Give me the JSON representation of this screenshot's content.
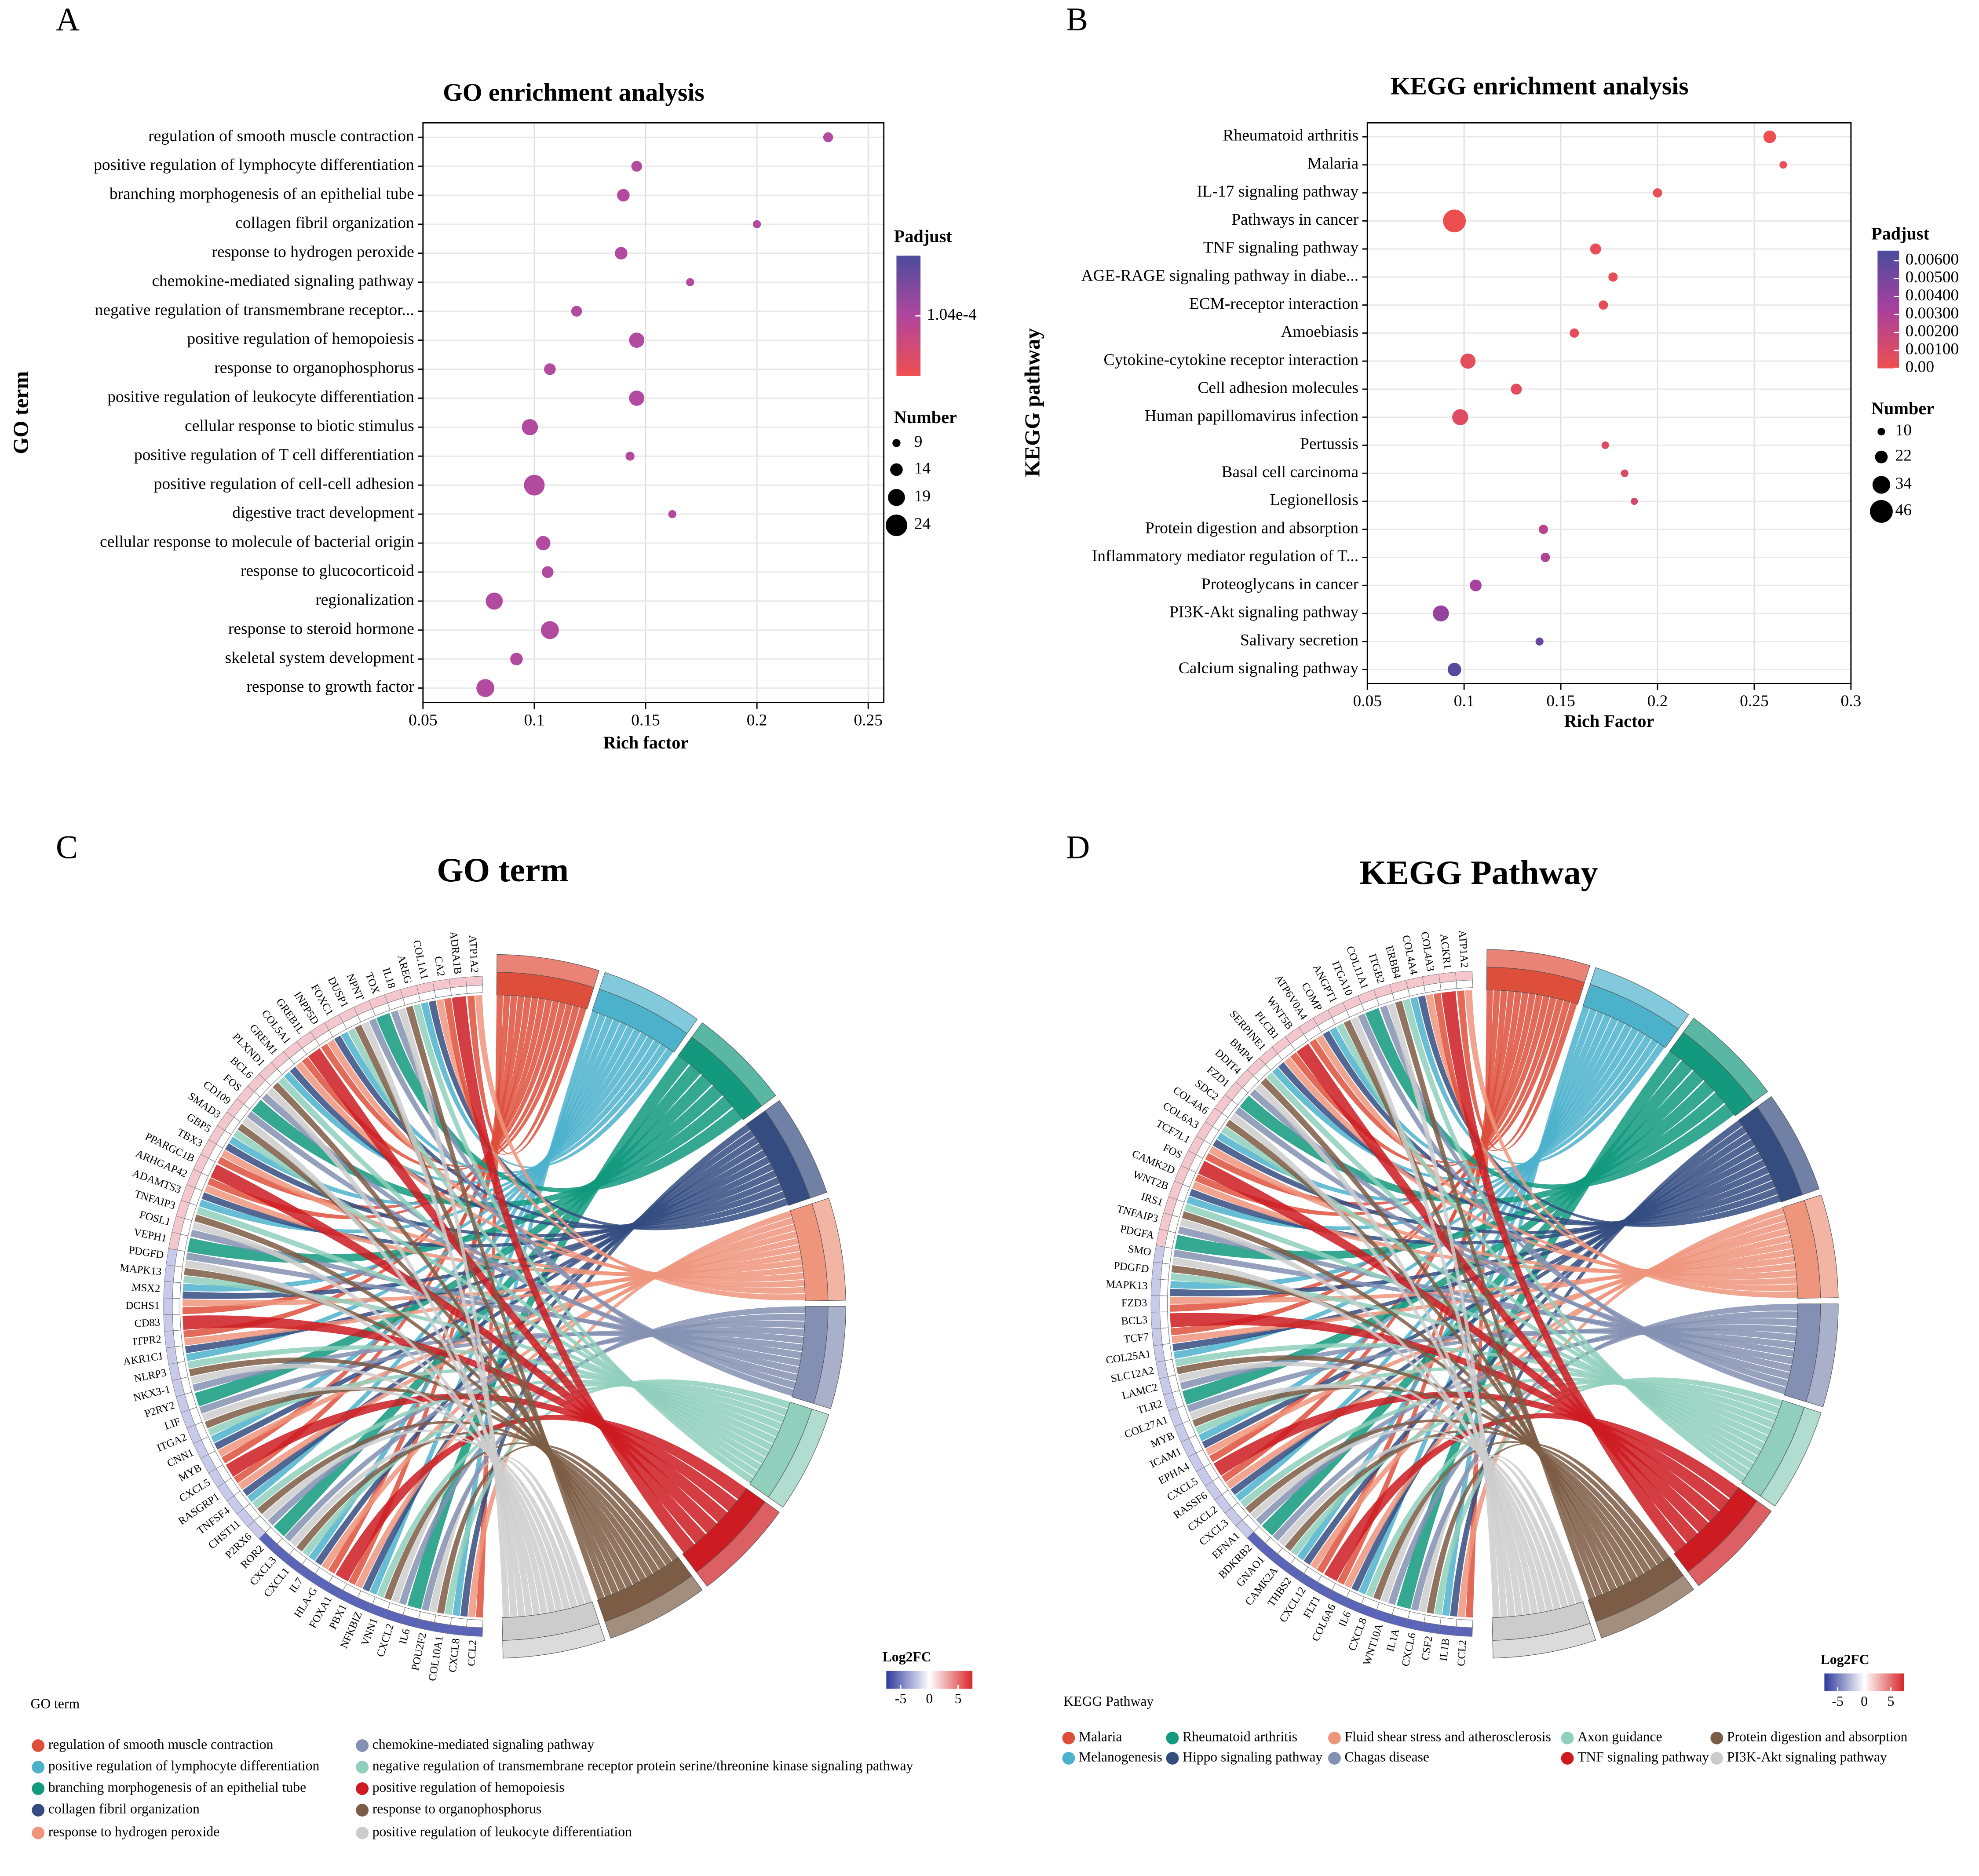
{
  "chart_data": [
    {
      "type": "bubble",
      "panel_label": "A",
      "title": "GO enrichment analysis",
      "x_label": "Rich factor",
      "y_label": "GO term",
      "categories": [
        "regulation of smooth muscle contraction",
        "positive regulation of lymphocyte differentiation",
        "branching morphogenesis of an epithelial tube",
        "collagen fibril organization",
        "response to hydrogen peroxide",
        "chemokine-mediated signaling pathway",
        "negative regulation of transmembrane receptor...",
        "positive regulation of hemopoiesis",
        "response to organophosphorus",
        "positive regulation of leukocyte differentiation",
        "cellular response to biotic stimulus",
        "positive regulation of T cell differentiation",
        "positive regulation of cell-cell adhesion",
        "digestive tract development",
        "cellular response to molecule of bacterial origin",
        "response to glucocorticoid",
        "regionalization",
        "response to steroid hormone",
        "skeletal system development",
        "response to growth factor"
      ],
      "x": [
        0.232,
        0.146,
        0.14,
        0.2,
        0.139,
        0.17,
        0.119,
        0.146,
        0.107,
        0.146,
        0.098,
        0.143,
        0.1,
        0.162,
        0.104,
        0.106,
        0.082,
        0.107,
        0.092,
        0.078
      ],
      "sizes": [
        11,
        12,
        14,
        9,
        14,
        9,
        12,
        17,
        13,
        17,
        18,
        10,
        23,
        9,
        16,
        13,
        19,
        20,
        14,
        20
      ],
      "color": "#b24a9f",
      "xlim": [
        0.05,
        0.257
      ],
      "xticks": [
        0.05,
        0.1,
        0.15,
        0.2,
        0.25
      ],
      "grid": true,
      "colorbar": {
        "title": "Padjust",
        "colors": [
          "#ef4f4f",
          "#b0469d",
          "#4b4c9e"
        ],
        "lim": [
          9.95e-05,
          0.0001085
        ],
        "ticks": [
          {
            "value": 0.000104,
            "label": "1.04e-4"
          }
        ]
      },
      "size_legend": {
        "title": "Number",
        "values": [
          9,
          14,
          19,
          24
        ]
      }
    },
    {
      "type": "bubble",
      "panel_label": "B",
      "title": "KEGG enrichment analysis",
      "x_label": "Rich Factor",
      "y_label": "KEGG pathway",
      "categories": [
        "Rheumatoid arthritis",
        "Malaria",
        "IL-17 signaling pathway",
        "Pathways in cancer",
        "TNF signaling pathway",
        "AGE-RAGE signaling pathway in diabe...",
        "ECM-receptor interaction",
        "Amoebiasis",
        "Cytokine-cytokine receptor interaction",
        "Cell adhesion molecules",
        "Human papillomavirus infection",
        "Pertussis",
        "Basal cell carcinoma",
        "Legionellosis",
        "Protein digestion and absorption",
        "Inflammatory mediator regulation of T...",
        "Proteoglycans in cancer",
        "PI3K-Akt signaling pathway",
        "Salivary secretion",
        "Calcium signaling pathway"
      ],
      "x": [
        0.258,
        0.265,
        0.2,
        0.095,
        0.168,
        0.177,
        0.172,
        0.157,
        0.102,
        0.127,
        0.098,
        0.173,
        0.183,
        0.188,
        0.141,
        0.142,
        0.106,
        0.088,
        0.139,
        0.095
      ],
      "sizes": [
        22,
        10,
        14,
        46,
        18,
        14,
        14,
        14,
        28,
        18,
        30,
        10,
        10,
        9,
        14,
        14,
        20,
        30,
        11,
        24
      ],
      "padjust": [
        0.0001,
        0.0002,
        0.0003,
        0.0001,
        0.0003,
        0.0004,
        0.0004,
        0.0005,
        0.0005,
        0.0006,
        0.0008,
        0.0009,
        0.001,
        0.0012,
        0.0025,
        0.0028,
        0.0033,
        0.004,
        0.0055,
        0.0062
      ],
      "xlim": [
        0.05,
        0.3
      ],
      "xticks": [
        0.05,
        0.1,
        0.15,
        0.2,
        0.25,
        0.3
      ],
      "grid": true,
      "colorbar": {
        "title": "Padjust",
        "colors": [
          "#ef4f4f",
          "#a8409e",
          "#4b4c9e"
        ],
        "lim": [
          0,
          0.00656
        ],
        "ticks": [
          {
            "value": 0.006,
            "label": "0.00600"
          },
          {
            "value": 0.005,
            "label": "0.00500"
          },
          {
            "value": 0.004,
            "label": "0.00400"
          },
          {
            "value": 0.003,
            "label": "0.00300"
          },
          {
            "value": 0.002,
            "label": "0.00200"
          },
          {
            "value": 0.001,
            "label": "0.00100"
          },
          {
            "value": 0,
            "label": "0.00"
          }
        ]
      },
      "size_legend": {
        "title": "Number",
        "values": [
          10,
          22,
          34,
          46
        ]
      }
    },
    {
      "type": "chord",
      "panel_label": "C",
      "title": "GO term",
      "legend_title": "GO term",
      "genes": [
        "CCL2",
        "CXCL8",
        "COL10A1",
        "POU2F2",
        "IL6",
        "CXCL2",
        "VNN1",
        "NFKBIZ",
        "PBX1",
        "FOXA1",
        "HLA-G",
        "IL7",
        "CXCL1",
        "CXCL3",
        "ROR2",
        "P2RX6",
        "CHST11",
        "TNFSF4",
        "RASGRP1",
        "CXCL5",
        "MYB",
        "CNN1",
        "ITGA2",
        "LIF",
        "P2RY2",
        "NKX3-1",
        "NLRP3",
        "AKR1C1",
        "ITPR2",
        "CD83",
        "DCHS1",
        "MSX2",
        "MAPK13",
        "PDGFD",
        "VEPH1",
        "FOSL1",
        "TNFAIP3",
        "ADAMTS3",
        "ARHGAP42",
        "PPARGC1B",
        "TBX3",
        "GBP5",
        "SMAD3",
        "CD109",
        "FOS",
        "BCL6",
        "PLXND1",
        "GREM1",
        "COL5A1",
        "GREB1L",
        "INPP5D",
        "FOXC1",
        "DUSP1",
        "NPNT",
        "TOX",
        "IL18",
        "AREG",
        "COL1A1",
        "CA2",
        "ADRA1B",
        "ATP1A2"
      ],
      "terms": [
        {
          "name": "regulation of smooth muscle contraction",
          "color": "#de4f3b"
        },
        {
          "name": "positive regulation of lymphocyte differentiation",
          "color": "#4cb2cc"
        },
        {
          "name": "branching morphogenesis of an epithelial tube",
          "color": "#12997e"
        },
        {
          "name": "collagen fibril organization",
          "color": "#344c80"
        },
        {
          "name": "response to hydrogen peroxide",
          "color": "#ee957c"
        },
        {
          "name": "chemokine-mediated signaling pathway",
          "color": "#8490b3"
        },
        {
          "name": "negative regulation of transmembrane receptor protein serine/threonine kinase signaling pathway",
          "color": "#8fcfbb"
        },
        {
          "name": "positive regulation of hemopoiesis",
          "color": "#cd1b21"
        },
        {
          "name": "response to organophosphorus",
          "color": "#7c5c44"
        },
        {
          "name": "positive regulation of leukocyte differentiation",
          "color": "#cccccc"
        }
      ],
      "colorbar": {
        "title": "Log2FC",
        "colors": [
          "#2d3a9c",
          "#ffffff",
          "#d7262a"
        ],
        "lim": [
          -7.5,
          7.5
        ],
        "ticks": [
          -5,
          0,
          5
        ]
      }
    },
    {
      "type": "chord",
      "panel_label": "D",
      "title": "KEGG Pathway",
      "legend_title": "KEGG Pathway",
      "genes": [
        "CCL2",
        "IL1B",
        "CSF2",
        "CXCL6",
        "IL1A",
        "WNT10A",
        "CXCL8",
        "IL6",
        "COL6A6",
        "FLT1",
        "CXCL12",
        "THBS2",
        "CAMK2A",
        "GNAO1",
        "BDKRB2",
        "EFNA1",
        "CXCL3",
        "CXCL2",
        "RASSF6",
        "CXCL5",
        "EPHA4",
        "ICAM1",
        "MYB",
        "COL27A1",
        "TLR2",
        "LAMC2",
        "SLC12A2",
        "COL25A1",
        "TCF7",
        "BCL3",
        "FZD3",
        "MAPK13",
        "PDGFD",
        "SMO",
        "PDGFA",
        "TNFAIP3",
        "IRS1",
        "WNT2B",
        "CAMK2D",
        "FOS",
        "TCF7L1",
        "COL6A3",
        "COL4A6",
        "SDC2",
        "FZD1",
        "DDIT4",
        "BMP4",
        "SERPINE1",
        "PLCB1",
        "WNT5B",
        "ATP6V0A4",
        "COMP",
        "ANGPT1",
        "ITGA10",
        "COL11A1",
        "ITGB2",
        "ERBB4",
        "COL4A4",
        "COL4A3",
        "ACKR1",
        "ATP1A2"
      ],
      "terms": [
        {
          "name": "Malaria",
          "color": "#de4f3b"
        },
        {
          "name": "Melanogenesis",
          "color": "#4cb2cc"
        },
        {
          "name": "Rheumatoid arthritis",
          "color": "#12997e"
        },
        {
          "name": "Hippo signaling pathway",
          "color": "#344c80"
        },
        {
          "name": "Fluid shear stress and atherosclerosis",
          "color": "#ee957c"
        },
        {
          "name": "Chagas disease",
          "color": "#8490b3"
        },
        {
          "name": "Axon guidance",
          "color": "#8fcfbb"
        },
        {
          "name": "TNF signaling pathway",
          "color": "#cd1b21"
        },
        {
          "name": "Protein digestion and absorption",
          "color": "#7c5c44"
        },
        {
          "name": "PI3K-Akt signaling pathway",
          "color": "#cccccc"
        }
      ],
      "colorbar": {
        "title": "Log2FC",
        "colors": [
          "#2d3a9c",
          "#ffffff",
          "#d7262a"
        ],
        "lim": [
          -7.5,
          7.5
        ],
        "ticks": [
          -5,
          0,
          5
        ]
      }
    }
  ]
}
